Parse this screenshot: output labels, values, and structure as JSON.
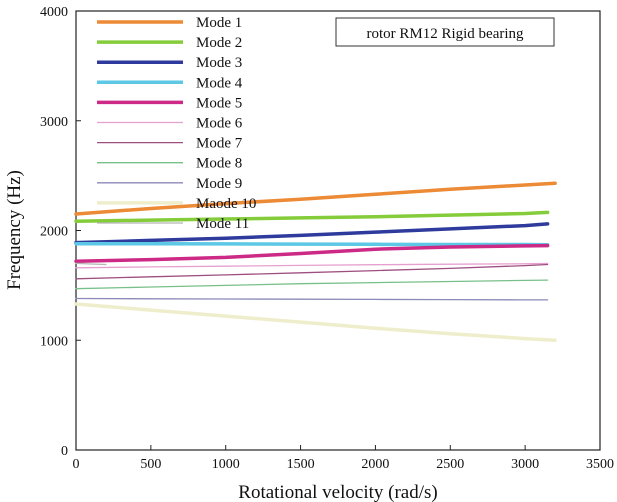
{
  "chart_data": {
    "type": "line",
    "title": "",
    "annotation": "rotor RM12 Rigid bearing",
    "xlabel": "Rotational velocity (rad/s)",
    "ylabel": "Frequency (Hz)",
    "xlim": [
      0,
      3500
    ],
    "ylim": [
      0,
      4000
    ],
    "xticks": [
      0,
      500,
      1000,
      1500,
      2000,
      2500,
      3000,
      3500
    ],
    "yticks": [
      0,
      1000,
      2000,
      3000,
      4000
    ],
    "legend_position": "top-left",
    "series": [
      {
        "name": "Mode 1",
        "color": "#ec8a35",
        "weight": "thick",
        "x": [
          0,
          500,
          1000,
          1500,
          2000,
          2500,
          3000,
          3200
        ],
        "y": [
          2150,
          2200,
          2245,
          2285,
          2330,
          2375,
          2415,
          2430
        ]
      },
      {
        "name": "Mode 2",
        "color": "#84cc3a",
        "weight": "thick",
        "x": [
          0,
          500,
          1000,
          1500,
          2000,
          2500,
          3000,
          3150
        ],
        "y": [
          2085,
          2095,
          2105,
          2115,
          2125,
          2140,
          2155,
          2165
        ]
      },
      {
        "name": "Mode 3",
        "color": "#2e3b9c",
        "weight": "thick",
        "x": [
          0,
          500,
          1000,
          1500,
          2000,
          2500,
          3000,
          3150
        ],
        "y": [
          1890,
          1910,
          1930,
          1955,
          1985,
          2015,
          2045,
          2060
        ]
      },
      {
        "name": "Mode 4",
        "color": "#5cc8e6",
        "weight": "thick",
        "x": [
          0,
          500,
          1000,
          1500,
          2000,
          2500,
          3000,
          3150
        ],
        "y": [
          1880,
          1880,
          1878,
          1876,
          1874,
          1872,
          1872,
          1870
        ]
      },
      {
        "name": "Mode 5",
        "color": "#cc2a86",
        "weight": "thick",
        "x": [
          0,
          500,
          1000,
          1500,
          2000,
          2500,
          3000,
          3150
        ],
        "y": [
          1720,
          1735,
          1755,
          1790,
          1830,
          1850,
          1860,
          1862
        ]
      },
      {
        "name": "Mode 6",
        "color": "#e6a0cf",
        "weight": "thin",
        "x": [
          0,
          500,
          1000,
          1500,
          2000,
          2500,
          3000,
          3150
        ],
        "y": [
          1660,
          1668,
          1675,
          1682,
          1688,
          1693,
          1697,
          1700
        ]
      },
      {
        "name": "Mode 7",
        "color": "#9e4f80",
        "weight": "thin",
        "x": [
          0,
          500,
          1000,
          1500,
          2000,
          2500,
          3000,
          3150
        ],
        "y": [
          1560,
          1578,
          1595,
          1615,
          1635,
          1655,
          1680,
          1690
        ]
      },
      {
        "name": "Mode 8",
        "color": "#78c08a",
        "weight": "thin",
        "x": [
          0,
          500,
          1000,
          1500,
          2000,
          2500,
          3000,
          3150
        ],
        "y": [
          1470,
          1485,
          1500,
          1515,
          1525,
          1535,
          1545,
          1548
        ]
      },
      {
        "name": "Mode 9",
        "color": "#8c8ab8",
        "weight": "thin",
        "x": [
          0,
          500,
          1000,
          1500,
          2000,
          2500,
          3000,
          3150
        ],
        "y": [
          1380,
          1378,
          1376,
          1374,
          1372,
          1370,
          1368,
          1368
        ]
      },
      {
        "name": "Maode 10",
        "color": "#eeeecc",
        "weight": "thick",
        "x": [
          0,
          500,
          1000,
          1500,
          2000,
          2500,
          3000,
          3200
        ],
        "y": [
          1330,
          1275,
          1220,
          1165,
          1110,
          1060,
          1015,
          1000
        ]
      },
      {
        "name": "Mode 11",
        "color": "#b4b4b4",
        "weight": "thin",
        "x": [
          0,
          100,
          200
        ],
        "y": [
          1700,
          1695,
          1690
        ]
      }
    ]
  }
}
